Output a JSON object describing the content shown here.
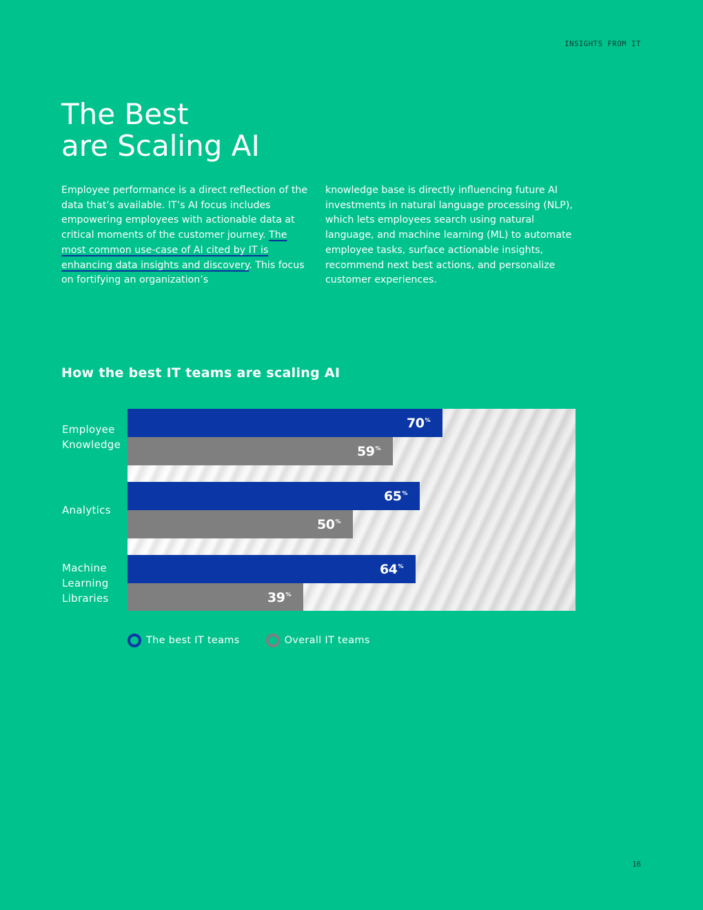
{
  "header": {
    "section_label": "INSIGHTS FROM IT"
  },
  "page": {
    "title_line1": "The Best",
    "title_line2": "are Scaling AI",
    "body_left_intro": "Employee performance is a direct reflection of the data that’s available. IT’s AI focus includes empowering employees with actionable data at critical moments of the customer journey. ",
    "body_left_link": "The most common use-case of AI cited by IT is enhancing data insights and discovery",
    "body_left_outro": ". This focus on fortifying an organization’s",
    "body_right": "knowledge base is directly influencing future AI investments in natural language processing (NLP), which lets employees search using natural language, and machine learning (ML) to automate employee tasks, surface actionable insights, recommend next best actions, and personalize customer experiences.",
    "page_number": "16"
  },
  "chart_data": {
    "type": "bar",
    "orientation": "horizontal",
    "title": "How the best IT teams are scaling AI",
    "categories": [
      "Employee\nKnowledge",
      "Analytics",
      "Machine\nLearning\nLibraries"
    ],
    "series": [
      {
        "name": "The best IT teams",
        "values": [
          70,
          65,
          64
        ],
        "color": "#0a37a5"
      },
      {
        "name": "Overall IT teams",
        "values": [
          59,
          50,
          39
        ],
        "color": "#7f7f7f"
      }
    ],
    "value_suffix": "%",
    "xlim": [
      0,
      100
    ],
    "grid": false,
    "legend_position": "bottom-left"
  }
}
